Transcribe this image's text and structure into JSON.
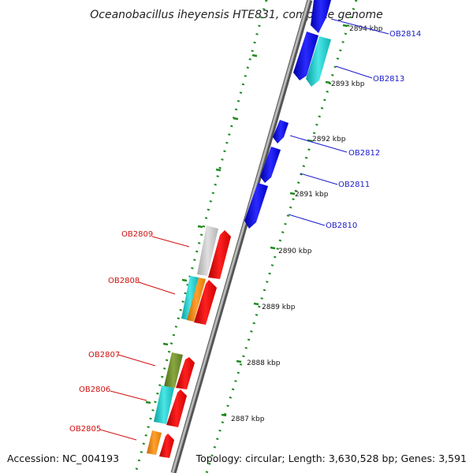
{
  "title": "Oceanobacillus iheyensis HTE831, complete genome",
  "footer": {
    "accession": "Accession: NC_004193",
    "summary": "Topology: circular; Length: 3,630,528 bp; Genes: 3,591"
  },
  "ticks": [
    "2894 kbp",
    "2893 kbp",
    "2892 kbp",
    "2891 kbp",
    "2890 kbp",
    "2889 kbp",
    "2888 kbp",
    "2887 kbp"
  ],
  "gene_labels": {
    "right": [
      "OB2814",
      "OB2813",
      "OB2812",
      "OB2811",
      "OB2810"
    ],
    "left": [
      "OB2809",
      "OB2808",
      "OB2807",
      "OB2806",
      "OB2805"
    ]
  },
  "colors": {
    "backbone": "#8a8a8a",
    "green_ring": "#1f8a1f",
    "blue": "#1010ee",
    "cyan": "#1ec8c8",
    "red": "#ee1010",
    "orange": "#f08a10",
    "gray": "#c4c4c4",
    "olive": "#6b8a2a",
    "label_blue": "#1a1acc",
    "label_red": "#d01010"
  }
}
